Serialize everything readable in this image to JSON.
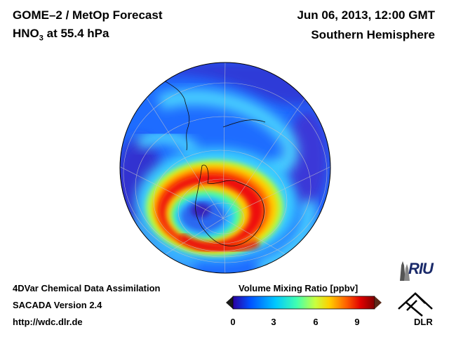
{
  "header": {
    "title": "GOME–2 / MetOp Forecast",
    "species_main": "HNO",
    "species_sub": "3",
    "species_rest": " at 55.4 hPa",
    "date": "Jun 06, 2013, 12:00 GMT",
    "hemisphere": "Southern Hemisphere"
  },
  "footer": {
    "line1": "4DVar Chemical Data Assimilation",
    "line2": "SACADA Version 2.4",
    "line3": "http://wdc.dlr.de"
  },
  "colorbar": {
    "title": "Volume Mixing Ratio [ppbv]",
    "ticks": [
      "0",
      "3",
      "6",
      "9"
    ],
    "range": [
      0,
      10.5
    ],
    "colors": [
      "#2a00a0",
      "#0050ff",
      "#00c8ff",
      "#40ffb0",
      "#c8ff40",
      "#ffd000",
      "#ff6000",
      "#e00000",
      "#800000"
    ]
  },
  "logos": {
    "riu": "RIU",
    "dlr": "DLR"
  },
  "map": {
    "projection": "orthographic, south pole centered",
    "field_colors": {
      "background": "#1e6cff",
      "low": "#3a1ec8",
      "mid": "#4ad2ff",
      "high": "#ffd000",
      "peak": "#e81010"
    }
  }
}
